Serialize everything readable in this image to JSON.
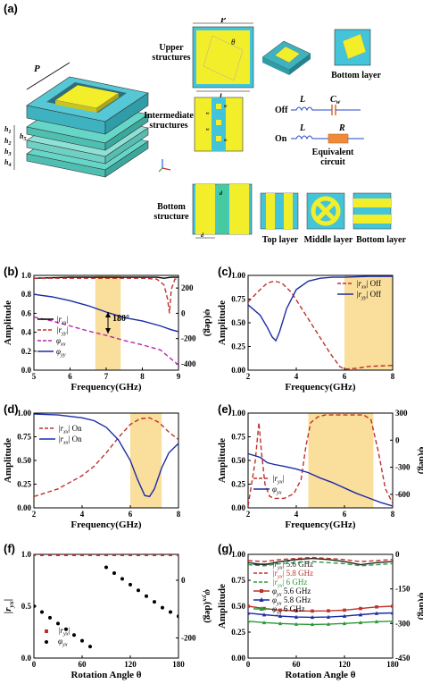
{
  "panel_a": {
    "label": "(a)",
    "upper": "Upper structures",
    "intermediate": "Intermediate structures",
    "bottom": "Bottom structure",
    "bottom_layer": "Bottom layer",
    "top_layer": "Top layer",
    "middle_layer": "Middle layer",
    "bottom_layer2": "Bottom layer",
    "equiv": "Equivalent circuit",
    "off": "Off",
    "on": "On",
    "L1": "L",
    "L2": "L",
    "Cw": "C",
    "Cw_sub": "w",
    "R": "R",
    "P_top": "P",
    "P_iso": "P",
    "h1": "h",
    "h2": "h",
    "h3": "h",
    "h4": "h",
    "h5": "h",
    "h1s": "1",
    "h2s": "2",
    "h3s": "3",
    "h4s": "4",
    "h5s": "5",
    "l1": "l",
    "l1s": "1",
    "theta": "θ",
    "w1": "w",
    "w2": "w",
    "w3": "w",
    "w4": "w",
    "d1": "d",
    "d2": "d"
  },
  "chart_data": [
    {
      "id": "b",
      "label": "(b)",
      "type": "line",
      "xlabel": "Frequency(GHz)",
      "ylabel": "Amplitude",
      "y2label": "φ(deg)",
      "xlim": [
        5,
        9
      ],
      "ylim": [
        0,
        1
      ],
      "y2lim": [
        -450,
        300
      ],
      "xticks": [
        5,
        6,
        7,
        8,
        9
      ],
      "yticks": [
        0,
        0.2,
        0.4,
        0.6,
        0.8,
        1.0
      ],
      "y2ticks": [
        200,
        0,
        -200,
        -400
      ],
      "band": [
        6.7,
        7.4
      ],
      "annotation": "180°",
      "series": [
        {
          "name": "|r_xx|",
          "axis": "y",
          "color": "#000000",
          "dash": false,
          "x": [
            5,
            6,
            7,
            7.5,
            8,
            8.4,
            8.6,
            8.8,
            9
          ],
          "y": [
            0.97,
            0.98,
            0.98,
            0.98,
            0.98,
            0.98,
            0.97,
            0.98,
            0.98
          ]
        },
        {
          "name": "|r_yy|",
          "axis": "y",
          "color": "#c0302a",
          "dash": true,
          "x": [
            5,
            6,
            7,
            7.5,
            8,
            8.4,
            8.6,
            8.7,
            8.75,
            8.8,
            8.9,
            9
          ],
          "y": [
            0.97,
            0.97,
            0.97,
            0.97,
            0.97,
            0.96,
            0.9,
            0.75,
            0.6,
            0.85,
            0.96,
            0.97
          ]
        },
        {
          "name": "φ_xx",
          "axis": "y2",
          "color": "#b52aa8",
          "dash": true,
          "x": [
            5,
            5.5,
            6,
            6.5,
            7,
            7.5,
            8,
            8.5,
            9
          ],
          "y": [
            -30,
            -60,
            -100,
            -140,
            -175,
            -215,
            -250,
            -290,
            -410
          ]
        },
        {
          "name": "φ_yy",
          "axis": "y2",
          "color": "#1c2ba6",
          "dash": false,
          "x": [
            5,
            5.5,
            6,
            6.5,
            7,
            7.5,
            8,
            8.5,
            8.8,
            9
          ],
          "y": [
            150,
            130,
            100,
            60,
            10,
            -35,
            -60,
            -100,
            -130,
            -145
          ]
        }
      ]
    },
    {
      "id": "c",
      "label": "(c)",
      "type": "line",
      "xlabel": "Frequency(GHz)",
      "ylabel": "Amplitude",
      "xlim": [
        2,
        8
      ],
      "ylim": [
        0,
        1
      ],
      "xticks": [
        2,
        4,
        6,
        8
      ],
      "yticks": [
        0,
        0.25,
        0.5,
        0.75,
        1.0
      ],
      "band": [
        6,
        8
      ],
      "series": [
        {
          "name": "|r_xx| Off",
          "color": "#c0302a",
          "dash": true,
          "x": [
            2,
            2.5,
            2.8,
            3.1,
            3.4,
            3.8,
            4.2,
            4.8,
            5.4,
            5.8,
            6,
            6.5,
            7,
            8
          ],
          "y": [
            0.72,
            0.85,
            0.92,
            0.94,
            0.92,
            0.82,
            0.66,
            0.42,
            0.18,
            0.04,
            0.01,
            0.02,
            0.04,
            0.05
          ]
        },
        {
          "name": "|r_yy| Off",
          "color": "#1c2ba6",
          "dash": false,
          "x": [
            2,
            2.5,
            2.8,
            3.0,
            3.15,
            3.3,
            3.6,
            4,
            4.5,
            5,
            5.5,
            6,
            7,
            8
          ],
          "y": [
            0.69,
            0.58,
            0.45,
            0.35,
            0.31,
            0.4,
            0.65,
            0.85,
            0.94,
            0.97,
            0.98,
            0.98,
            0.99,
            0.99
          ]
        }
      ]
    },
    {
      "id": "d",
      "label": "(d)",
      "type": "line",
      "xlabel": "Frequency(GHz)",
      "ylabel": "Amplitude",
      "xlim": [
        2,
        8
      ],
      "ylim": [
        0,
        1
      ],
      "xticks": [
        2,
        4,
        6,
        8
      ],
      "yticks": [
        0,
        0.25,
        0.5,
        0.75,
        1.0
      ],
      "band": [
        6,
        7.3
      ],
      "series": [
        {
          "name": "|r_xx| On",
          "color": "#c0302a",
          "dash": true,
          "x": [
            2,
            3,
            4,
            4.5,
            5,
            5.5,
            6,
            6.4,
            6.8,
            7.2,
            7.6,
            8
          ],
          "y": [
            0.12,
            0.2,
            0.34,
            0.44,
            0.58,
            0.74,
            0.88,
            0.94,
            0.95,
            0.9,
            0.8,
            0.72
          ]
        },
        {
          "name": "|r_xx| On",
          "color": "#1c2ba6",
          "dash": false,
          "x": [
            2,
            3,
            4,
            4.5,
            5,
            5.5,
            6,
            6.3,
            6.6,
            6.8,
            7,
            7.3,
            7.6,
            8
          ],
          "y": [
            0.99,
            0.98,
            0.95,
            0.92,
            0.85,
            0.72,
            0.5,
            0.3,
            0.13,
            0.12,
            0.2,
            0.42,
            0.58,
            0.68
          ]
        }
      ]
    },
    {
      "id": "e",
      "label": "(e)",
      "type": "line",
      "xlabel": "Frequency(GHz)",
      "ylabel": "Amplitude",
      "y2label": "φ(deg)",
      "xlim": [
        2,
        8
      ],
      "ylim": [
        0,
        1
      ],
      "y2lim": [
        -750,
        300
      ],
      "xticks": [
        2,
        4,
        6,
        8
      ],
      "yticks": [
        0,
        0.25,
        0.5,
        0.75,
        1.0
      ],
      "y2ticks": [
        300,
        0,
        -300,
        -600
      ],
      "band": [
        4.5,
        7.2
      ],
      "series": [
        {
          "name": "|r_yx|",
          "axis": "y",
          "color": "#c0302a",
          "dash": true,
          "x": [
            2,
            2.3,
            2.45,
            2.55,
            2.7,
            2.9,
            3.1,
            3.5,
            3.9,
            4.2,
            4.4,
            4.6,
            4.9,
            5.2,
            6,
            6.8,
            7.1,
            7.4,
            7.7,
            8
          ],
          "y": [
            0.02,
            0.5,
            0.9,
            0.6,
            0.25,
            0.12,
            0.1,
            0.1,
            0.15,
            0.3,
            0.65,
            0.9,
            0.96,
            0.98,
            0.98,
            0.98,
            0.93,
            0.6,
            0.2,
            0.05
          ]
        },
        {
          "name": "φ_yx",
          "axis": "y2",
          "color": "#1c2ba6",
          "dash": false,
          "x": [
            2,
            2.5,
            2.8,
            3.1,
            3.5,
            4,
            4.5,
            5,
            5.5,
            6,
            6.5,
            7,
            7.5,
            8
          ],
          "y": [
            -150,
            -190,
            -250,
            -270,
            -290,
            -320,
            -360,
            -420,
            -470,
            -530,
            -590,
            -640,
            -690,
            -730
          ]
        }
      ]
    },
    {
      "id": "f",
      "label": "(f)",
      "type": "scatter",
      "xlabel": "Rotation Angle θ",
      "ylabel": "|r_yx|",
      "y2label": "φ_yx(deg)",
      "xlim": [
        0,
        180
      ],
      "ylim": [
        0,
        1
      ],
      "y2lim": [
        -270,
        90
      ],
      "xticks": [
        0,
        60,
        120,
        180
      ],
      "yticks": [
        0,
        0.5,
        1.0
      ],
      "y2ticks": [
        0,
        -200
      ],
      "series": [
        {
          "name": "|r_yx|",
          "axis": "y",
          "color": "#c0302a",
          "marker": "square",
          "x": [
            0,
            10,
            20,
            30,
            40,
            50,
            60,
            70,
            80,
            90,
            100,
            110,
            120,
            130,
            140,
            150,
            160,
            170,
            180
          ],
          "y": [
            1,
            1,
            1,
            1,
            1,
            1,
            1,
            1,
            1,
            1,
            1,
            1,
            1,
            1,
            1,
            1,
            1,
            1,
            1
          ]
        },
        {
          "name": "φ_yx",
          "axis": "y2",
          "color": "#000000",
          "marker": "circle",
          "x": [
            0,
            10,
            20,
            30,
            40,
            50,
            60,
            70,
            90,
            100,
            110,
            120,
            130,
            140,
            150,
            160,
            170,
            180
          ],
          "y": [
            -90,
            -110,
            -130,
            -150,
            -170,
            -190,
            -210,
            -230,
            45,
            25,
            5,
            -15,
            -35,
            -55,
            -75,
            -95,
            -110,
            -125
          ]
        }
      ]
    },
    {
      "id": "g",
      "label": "(g)",
      "type": "line",
      "xlabel": "Rotation Angle θ",
      "ylabel": "Amplitude",
      "y2label": "φ(deg)",
      "xlim": [
        0,
        180
      ],
      "ylim": [
        0,
        1
      ],
      "y2lim": [
        -450,
        0
      ],
      "xticks": [
        0,
        60,
        120,
        180
      ],
      "yticks": [
        0,
        0.25,
        0.5,
        0.75,
        1.0
      ],
      "y2ticks": [
        0,
        -150,
        -300,
        -450
      ],
      "series": [
        {
          "name": "|r_yx| 5.6 GHz",
          "axis": "y",
          "color": "#222222",
          "dash": false,
          "x": [
            0,
            20,
            40,
            60,
            80,
            100,
            120,
            140,
            160,
            180
          ],
          "y": [
            0.92,
            0.9,
            0.93,
            0.95,
            0.96,
            0.95,
            0.93,
            0.9,
            0.92,
            0.93
          ]
        },
        {
          "name": "|r_yx| 5.8 GHz",
          "axis": "y",
          "color": "#c0302a",
          "dash": true,
          "x": [
            0,
            20,
            40,
            60,
            80,
            100,
            120,
            140,
            160,
            180
          ],
          "y": [
            0.94,
            0.93,
            0.95,
            0.96,
            0.97,
            0.96,
            0.95,
            0.93,
            0.94,
            0.95
          ]
        },
        {
          "name": "|r_yx| 6  GHz",
          "axis": "y",
          "color": "#2a9a3a",
          "dash": true,
          "x": [
            0,
            20,
            40,
            60,
            80,
            100,
            120,
            140,
            160,
            180
          ],
          "y": [
            0.9,
            0.89,
            0.91,
            0.92,
            0.93,
            0.92,
            0.91,
            0.89,
            0.9,
            0.91
          ]
        },
        {
          "name": "φ_yx 5.6 GHz",
          "axis": "y2",
          "color": "#c0302a",
          "dash": false,
          "marker": "square",
          "x": [
            0,
            20,
            40,
            60,
            80,
            100,
            120,
            140,
            160,
            180
          ],
          "y": [
            -225,
            -235,
            -242,
            -245,
            -246,
            -245,
            -242,
            -235,
            -228,
            -225
          ]
        },
        {
          "name": "φ_yx 5.8 GHz",
          "axis": "y2",
          "color": "#1c2ba6",
          "dash": false,
          "marker": "triangle",
          "x": [
            0,
            20,
            40,
            60,
            80,
            100,
            120,
            140,
            160,
            180
          ],
          "y": [
            -255,
            -262,
            -268,
            -272,
            -273,
            -272,
            -268,
            -262,
            -256,
            -254
          ]
        },
        {
          "name": "φ_yx 6  GHz",
          "axis": "y2",
          "color": "#2a9a3a",
          "dash": false,
          "marker": "triangle",
          "x": [
            0,
            20,
            40,
            60,
            80,
            100,
            120,
            140,
            160,
            180
          ],
          "y": [
            -290,
            -296,
            -300,
            -303,
            -304,
            -303,
            -300,
            -296,
            -292,
            -290
          ]
        }
      ]
    }
  ]
}
